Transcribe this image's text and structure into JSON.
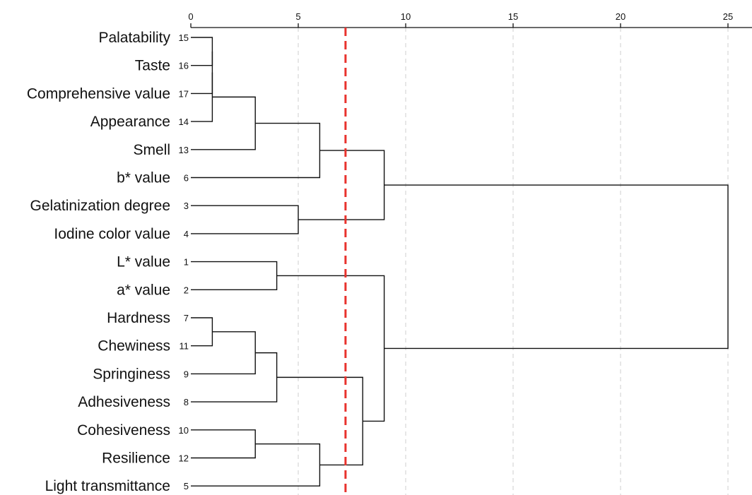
{
  "chart_data": {
    "type": "dendrogram",
    "title": "",
    "xlabel": "",
    "ylabel": "",
    "xlim": [
      0,
      26
    ],
    "x_ticks": [
      0,
      5,
      10,
      15,
      20,
      25
    ],
    "grid": true,
    "cut_line": {
      "value": 7.2,
      "color": "#e8322d"
    },
    "leaves": [
      {
        "id": 15,
        "name": "Palatability"
      },
      {
        "id": 16,
        "name": "Taste"
      },
      {
        "id": 17,
        "name": "Comprehensive value"
      },
      {
        "id": 14,
        "name": "Appearance"
      },
      {
        "id": 13,
        "name": "Smell"
      },
      {
        "id": 6,
        "name": "b* value"
      },
      {
        "id": 3,
        "name": "Gelatinization degree"
      },
      {
        "id": 4,
        "name": "Iodine color value"
      },
      {
        "id": 1,
        "name": "L* value"
      },
      {
        "id": 2,
        "name": "a* value"
      },
      {
        "id": 7,
        "name": "Hardness"
      },
      {
        "id": 11,
        "name": "Chewiness"
      },
      {
        "id": 9,
        "name": "Springiness"
      },
      {
        "id": 8,
        "name": "Adhesiveness"
      },
      {
        "id": 10,
        "name": "Cohesiveness"
      },
      {
        "id": 12,
        "name": "Resilience"
      },
      {
        "id": 5,
        "name": "Light transmittance"
      }
    ],
    "merges": [
      {
        "a": "L15",
        "b": "L16",
        "distance": 1
      },
      {
        "a": "M0",
        "b": "L17",
        "distance": 1
      },
      {
        "a": "M1",
        "b": "L14",
        "distance": 1
      },
      {
        "a": "L7",
        "b": "L11",
        "distance": 1
      },
      {
        "a": "M2",
        "b": "L13",
        "distance": 3
      },
      {
        "a": "M3",
        "b": "L9",
        "distance": 3
      },
      {
        "a": "L10",
        "b": "L12",
        "distance": 3
      },
      {
        "a": "L1",
        "b": "L2",
        "distance": 4
      },
      {
        "a": "M5",
        "b": "L8",
        "distance": 4
      },
      {
        "a": "L3",
        "b": "L4",
        "distance": 5
      },
      {
        "a": "M4",
        "b": "L6",
        "distance": 6
      },
      {
        "a": "M6",
        "b": "L5",
        "distance": 6
      },
      {
        "a": "M8",
        "b": "M11",
        "distance": 8
      },
      {
        "a": "M10",
        "b": "M9",
        "distance": 9
      },
      {
        "a": "M7",
        "b": "M12",
        "distance": 9
      },
      {
        "a": "M13",
        "b": "M14",
        "distance": 25
      }
    ]
  }
}
